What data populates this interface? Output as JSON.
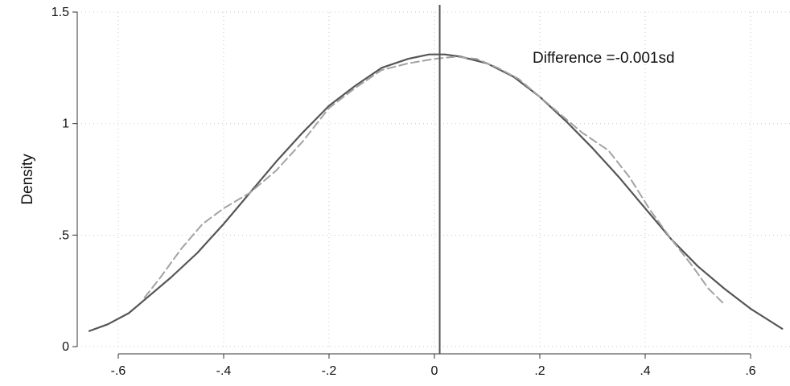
{
  "chart_data": {
    "type": "line",
    "title": "",
    "xlabel": "",
    "ylabel": "Density",
    "xlim": [
      -0.66,
      0.66
    ],
    "ylim": [
      0,
      1.5
    ],
    "x_ticks": [
      -0.6,
      -0.4,
      -0.2,
      0,
      0.2,
      0.4,
      0.6
    ],
    "x_tick_labels": [
      "-.6",
      "-.4",
      "-.2",
      "0",
      ".2",
      ".4",
      ".6"
    ],
    "y_ticks": [
      0,
      0.5,
      1,
      1.5
    ],
    "y_tick_labels": [
      "0",
      ".5",
      "1",
      "1.5"
    ],
    "grid": true,
    "vertical_line_x": 0.01,
    "annotation": "Difference =-0.001sd",
    "series": [
      {
        "style": "solid",
        "color": "#555555",
        "points": [
          [
            -0.655,
            0.07
          ],
          [
            -0.62,
            0.1
          ],
          [
            -0.58,
            0.15
          ],
          [
            -0.55,
            0.21
          ],
          [
            -0.5,
            0.31
          ],
          [
            -0.45,
            0.42
          ],
          [
            -0.4,
            0.55
          ],
          [
            -0.35,
            0.69
          ],
          [
            -0.3,
            0.83
          ],
          [
            -0.25,
            0.96
          ],
          [
            -0.2,
            1.08
          ],
          [
            -0.15,
            1.17
          ],
          [
            -0.1,
            1.25
          ],
          [
            -0.05,
            1.29
          ],
          [
            -0.01,
            1.31
          ],
          [
            0.02,
            1.31
          ],
          [
            0.05,
            1.3
          ],
          [
            0.1,
            1.27
          ],
          [
            0.15,
            1.21
          ],
          [
            0.2,
            1.12
          ],
          [
            0.25,
            1.01
          ],
          [
            0.3,
            0.89
          ],
          [
            0.35,
            0.76
          ],
          [
            0.4,
            0.62
          ],
          [
            0.45,
            0.48
          ],
          [
            0.5,
            0.36
          ],
          [
            0.55,
            0.26
          ],
          [
            0.6,
            0.17
          ],
          [
            0.64,
            0.11
          ],
          [
            0.66,
            0.08
          ]
        ]
      },
      {
        "style": "dashed",
        "color": "#a3a3a3",
        "points": [
          [
            -0.55,
            0.22
          ],
          [
            -0.52,
            0.31
          ],
          [
            -0.48,
            0.44
          ],
          [
            -0.44,
            0.55
          ],
          [
            -0.4,
            0.62
          ],
          [
            -0.35,
            0.69
          ],
          [
            -0.3,
            0.79
          ],
          [
            -0.25,
            0.92
          ],
          [
            -0.2,
            1.07
          ],
          [
            -0.15,
            1.16
          ],
          [
            -0.1,
            1.24
          ],
          [
            -0.05,
            1.27
          ],
          [
            0.0,
            1.29
          ],
          [
            0.04,
            1.3
          ],
          [
            0.08,
            1.29
          ],
          [
            0.12,
            1.25
          ],
          [
            0.16,
            1.2
          ],
          [
            0.2,
            1.12
          ],
          [
            0.24,
            1.04
          ],
          [
            0.28,
            0.96
          ],
          [
            0.33,
            0.88
          ],
          [
            0.37,
            0.76
          ],
          [
            0.41,
            0.61
          ],
          [
            0.45,
            0.48
          ],
          [
            0.49,
            0.36
          ],
          [
            0.52,
            0.26
          ],
          [
            0.55,
            0.19
          ]
        ]
      }
    ]
  }
}
